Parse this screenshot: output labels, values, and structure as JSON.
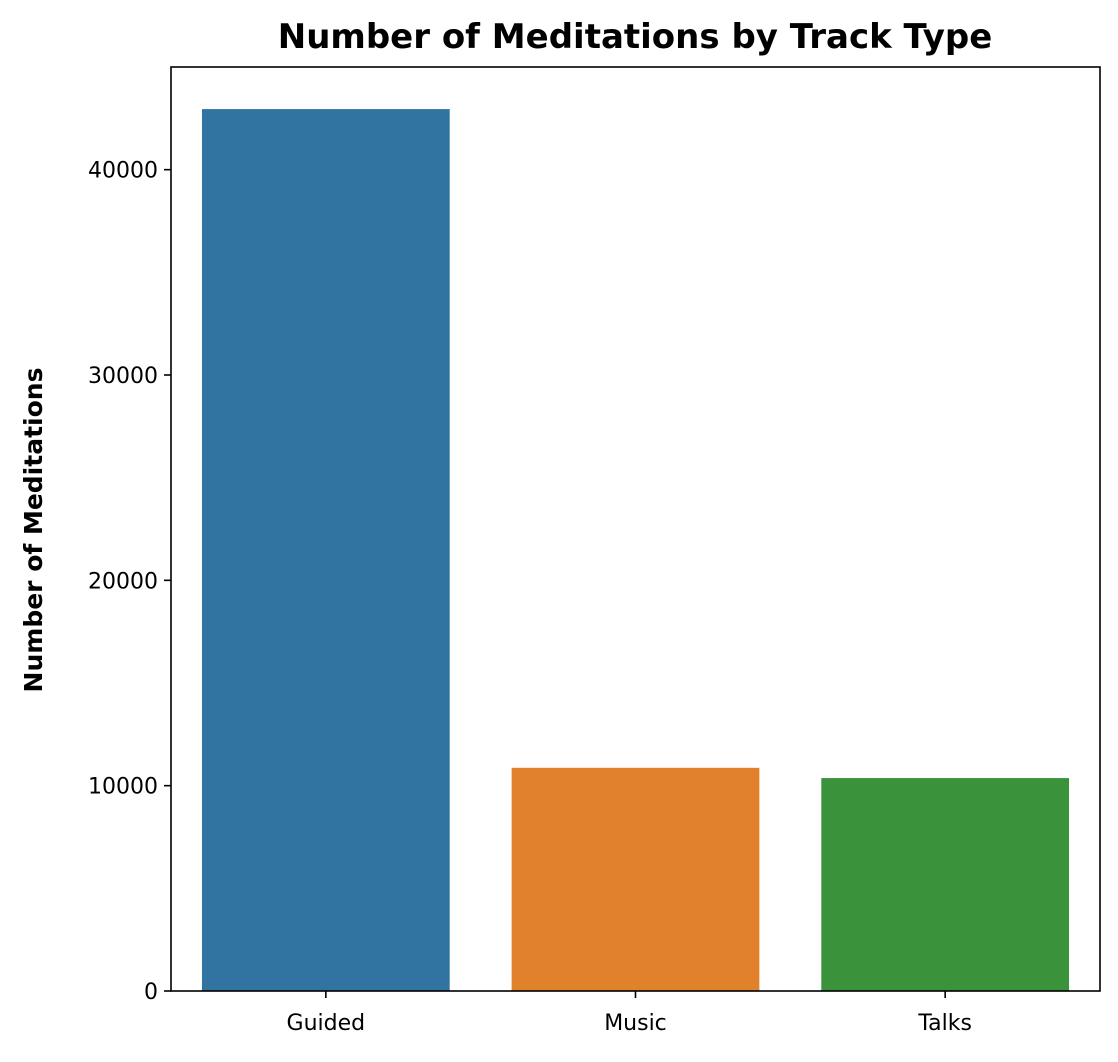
{
  "chart_data": {
    "type": "bar",
    "title": "Number of Meditations by Track Type",
    "xlabel": "",
    "ylabel": "Number of Meditations",
    "categories": [
      "Guided",
      "Music",
      "Talks"
    ],
    "values": [
      42950,
      10870,
      10370
    ],
    "colors": [
      "#3274a1",
      "#e1812c",
      "#3a923a"
    ],
    "ylim": [
      0,
      45000
    ],
    "yticks": [
      0,
      10000,
      20000,
      30000,
      40000
    ],
    "ytick_labels": [
      "0",
      "10000",
      "20000",
      "30000",
      "40000"
    ],
    "grid": false,
    "legend": false
  }
}
